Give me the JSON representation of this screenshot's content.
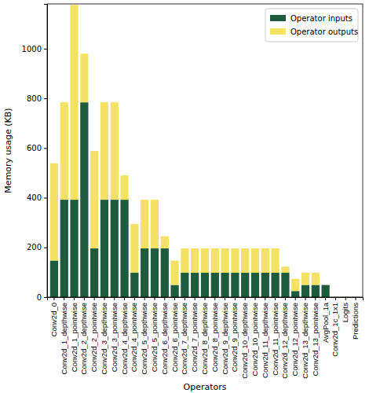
{
  "chart_data": {
    "type": "bar",
    "stacked": true,
    "legend": "upper right",
    "x_label": "Operators",
    "y_label": "Memory usage (KB)",
    "categories": [
      "Conv2d_0",
      "Conv2d_1_depthwise",
      "Conv2d_1_pointwise",
      "Conv2d_2_depthwise",
      "Conv2d_2_pointwise",
      "Conv2d_3_depthwise",
      "Conv2d_3_pointwise",
      "Conv2d_4_depthwise",
      "Conv2d_4_pointwise",
      "Conv2d_5_depthwise",
      "Conv2d_5_pointwise",
      "Conv2d_6_depthwise",
      "Conv2d_6_pointwise",
      "Conv2d_7_depthwise",
      "Conv2d_7_pointwise",
      "Conv2d_8_depthwise",
      "Conv2d_8_pointwise",
      "Conv2d_9_depthwise",
      "Conv2d_9_pointwise",
      "Conv2d_10_depthwise",
      "Conv2d_10_pointwise",
      "Conv2d_11_depthwise",
      "Conv2d_11_pointwise",
      "Conv2d_12_depthwise",
      "Conv2d_12_pointwise",
      "Conv2d_13_depthwise",
      "Conv2d_13_pointwise",
      "AvgPool_1a",
      "Conv2d_1c_1x1",
      "Logits",
      "Predictions"
    ],
    "series": [
      {
        "name": "Operator inputs",
        "color": "#1e5b3e",
        "values": [
          147,
          392,
          392,
          784,
          196,
          392,
          392,
          392,
          98,
          196,
          196,
          196,
          49,
          98,
          98,
          98,
          98,
          98,
          98,
          98,
          98,
          98,
          98,
          98,
          24.5,
          49,
          49,
          49,
          1,
          1,
          1
        ]
      },
      {
        "name": "Operator outputs",
        "color": "#f5e264",
        "values": [
          392,
          392,
          784,
          196,
          392,
          392,
          392,
          98,
          196,
          196,
          196,
          49,
          98,
          98,
          98,
          98,
          98,
          98,
          98,
          98,
          98,
          98,
          98,
          24.5,
          49,
          49,
          49,
          1,
          1,
          1,
          1
        ]
      }
    ],
    "ylim": [
      0,
      1180
    ],
    "yticks": [
      0,
      200,
      400,
      600,
      800,
      1000
    ]
  }
}
